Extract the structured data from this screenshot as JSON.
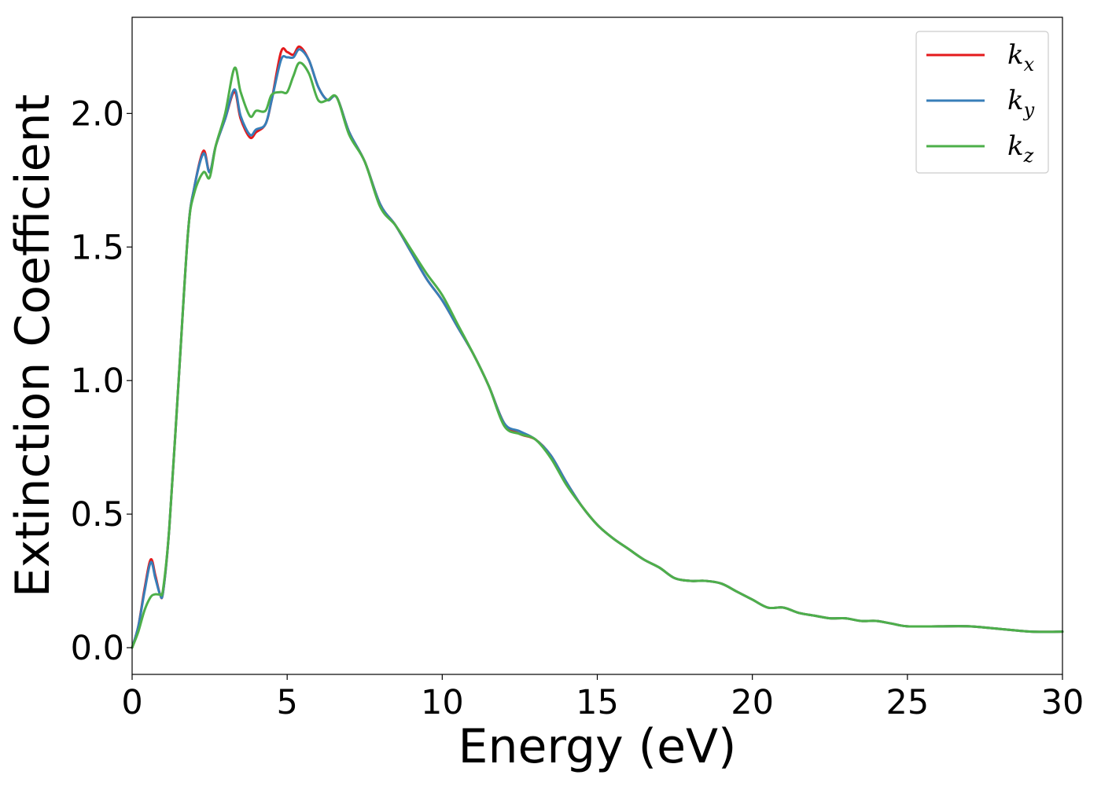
{
  "chart_data": {
    "type": "line",
    "title": "",
    "xlabel": "Energy (eV)",
    "ylabel": "Extinction Coefficient",
    "xlim": [
      0,
      30
    ],
    "ylim": [
      -0.1,
      2.36
    ],
    "xticks": [
      0,
      5,
      10,
      15,
      20,
      25,
      30
    ],
    "xtick_labels": [
      "0",
      "5",
      "10",
      "15",
      "20",
      "25",
      "30"
    ],
    "yticks": [
      0.0,
      0.5,
      1.0,
      1.5,
      2.0
    ],
    "ytick_labels": [
      "0.0",
      "0.5",
      "1.0",
      "1.5",
      "2.0"
    ],
    "grid": false,
    "legend_position": "top-right",
    "series": [
      {
        "name": "k_x",
        "label_base": "k",
        "label_sub": "x",
        "color": "#e41a1c",
        "x": [
          0,
          0.2,
          0.4,
          0.6,
          0.75,
          0.9,
          1.0,
          1.2,
          1.5,
          1.8,
          2.0,
          2.3,
          2.5,
          2.7,
          3.0,
          3.3,
          3.5,
          3.8,
          4.0,
          4.3,
          4.5,
          4.8,
          5.0,
          5.2,
          5.4,
          5.7,
          6.0,
          6.3,
          6.6,
          7.0,
          7.5,
          8.0,
          8.5,
          9.0,
          9.5,
          10.0,
          10.5,
          11.0,
          11.5,
          12.0,
          12.5,
          13.0,
          13.5,
          14.0,
          14.5,
          15.0,
          15.5,
          16.0,
          16.5,
          17.0,
          17.5,
          18.0,
          18.5,
          19.0,
          19.5,
          20.0,
          20.5,
          21.0,
          21.5,
          22.0,
          22.5,
          23.0,
          23.5,
          24.0,
          24.5,
          25.0,
          26.0,
          27.0,
          28.0,
          29.0,
          30.0
        ],
        "y": [
          0.0,
          0.08,
          0.22,
          0.33,
          0.27,
          0.2,
          0.21,
          0.45,
          1.0,
          1.55,
          1.72,
          1.86,
          1.78,
          1.88,
          1.98,
          2.08,
          1.98,
          1.91,
          1.93,
          1.96,
          2.05,
          2.23,
          2.23,
          2.22,
          2.25,
          2.2,
          2.1,
          2.05,
          2.06,
          1.93,
          1.82,
          1.66,
          1.58,
          1.48,
          1.38,
          1.3,
          1.2,
          1.1,
          0.98,
          0.84,
          0.8,
          0.78,
          0.72,
          0.62,
          0.53,
          0.46,
          0.41,
          0.37,
          0.33,
          0.3,
          0.26,
          0.25,
          0.25,
          0.24,
          0.21,
          0.18,
          0.15,
          0.15,
          0.13,
          0.12,
          0.11,
          0.11,
          0.1,
          0.1,
          0.09,
          0.08,
          0.08,
          0.08,
          0.07,
          0.06,
          0.06
        ]
      },
      {
        "name": "k_y",
        "label_base": "k",
        "label_sub": "y",
        "color": "#377eb8",
        "x": [
          0,
          0.2,
          0.4,
          0.6,
          0.75,
          0.9,
          1.0,
          1.2,
          1.5,
          1.8,
          2.0,
          2.3,
          2.5,
          2.7,
          3.0,
          3.3,
          3.5,
          3.8,
          4.0,
          4.3,
          4.5,
          4.8,
          5.0,
          5.2,
          5.4,
          5.7,
          6.0,
          6.3,
          6.6,
          7.0,
          7.5,
          8.0,
          8.5,
          9.0,
          9.5,
          10.0,
          10.5,
          11.0,
          11.5,
          12.0,
          12.5,
          13.0,
          13.5,
          14.0,
          14.5,
          15.0,
          15.5,
          16.0,
          16.5,
          17.0,
          17.5,
          18.0,
          18.5,
          19.0,
          19.5,
          20.0,
          20.5,
          21.0,
          21.5,
          22.0,
          22.5,
          23.0,
          23.5,
          24.0,
          24.5,
          25.0,
          26.0,
          27.0,
          28.0,
          29.0,
          30.0
        ],
        "y": [
          0.0,
          0.08,
          0.21,
          0.32,
          0.26,
          0.2,
          0.21,
          0.45,
          1.0,
          1.55,
          1.72,
          1.85,
          1.78,
          1.88,
          1.98,
          2.09,
          1.99,
          1.92,
          1.94,
          1.96,
          2.05,
          2.2,
          2.21,
          2.21,
          2.24,
          2.2,
          2.1,
          2.05,
          2.06,
          1.93,
          1.82,
          1.66,
          1.58,
          1.48,
          1.38,
          1.3,
          1.2,
          1.1,
          0.98,
          0.84,
          0.81,
          0.78,
          0.72,
          0.62,
          0.53,
          0.46,
          0.41,
          0.37,
          0.33,
          0.3,
          0.26,
          0.25,
          0.25,
          0.24,
          0.21,
          0.18,
          0.15,
          0.15,
          0.13,
          0.12,
          0.11,
          0.11,
          0.1,
          0.1,
          0.09,
          0.08,
          0.08,
          0.08,
          0.07,
          0.06,
          0.06
        ]
      },
      {
        "name": "k_z",
        "label_base": "k",
        "label_sub": "z",
        "color": "#4daf4a",
        "x": [
          0,
          0.2,
          0.4,
          0.6,
          0.75,
          0.9,
          1.0,
          1.2,
          1.5,
          1.8,
          2.0,
          2.3,
          2.5,
          2.7,
          3.0,
          3.3,
          3.5,
          3.8,
          4.0,
          4.3,
          4.5,
          4.8,
          5.0,
          5.2,
          5.4,
          5.7,
          6.0,
          6.3,
          6.6,
          7.0,
          7.5,
          8.0,
          8.5,
          9.0,
          9.5,
          10.0,
          10.5,
          11.0,
          11.5,
          12.0,
          12.5,
          13.0,
          13.5,
          14.0,
          14.5,
          15.0,
          15.5,
          16.0,
          16.5,
          17.0,
          17.5,
          18.0,
          18.5,
          19.0,
          19.5,
          20.0,
          20.5,
          21.0,
          21.5,
          22.0,
          22.5,
          23.0,
          23.5,
          24.0,
          24.5,
          25.0,
          26.0,
          27.0,
          28.0,
          29.0,
          30.0
        ],
        "y": [
          0.0,
          0.06,
          0.14,
          0.19,
          0.2,
          0.2,
          0.22,
          0.45,
          1.0,
          1.55,
          1.7,
          1.78,
          1.76,
          1.88,
          2.0,
          2.17,
          2.08,
          1.99,
          2.01,
          2.01,
          2.07,
          2.08,
          2.08,
          2.14,
          2.19,
          2.15,
          2.05,
          2.05,
          2.06,
          1.92,
          1.82,
          1.65,
          1.58,
          1.49,
          1.4,
          1.32,
          1.21,
          1.1,
          0.98,
          0.83,
          0.8,
          0.78,
          0.71,
          0.61,
          0.53,
          0.46,
          0.41,
          0.37,
          0.33,
          0.3,
          0.26,
          0.25,
          0.25,
          0.24,
          0.21,
          0.18,
          0.15,
          0.15,
          0.13,
          0.12,
          0.11,
          0.11,
          0.1,
          0.1,
          0.09,
          0.08,
          0.08,
          0.08,
          0.07,
          0.06,
          0.06
        ]
      }
    ]
  }
}
